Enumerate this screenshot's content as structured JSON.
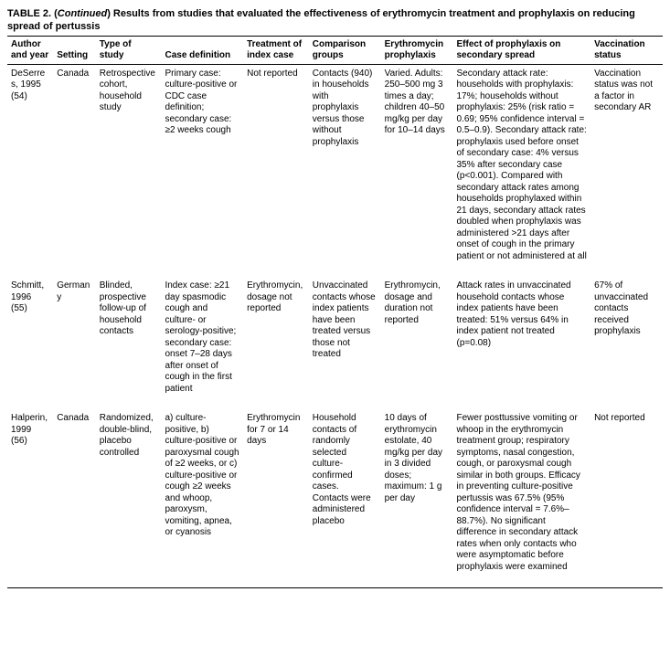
{
  "title_prefix": "TABLE 2. (",
  "title_cont": "Continued",
  "title_suffix": ") Results from studies that evaluated the effectiveness of erythromycin treatment and prophylaxis on reducing spread of pertussis",
  "columns": [
    "Author and year",
    "Setting",
    "Type of study",
    "Case definition",
    "Treatment of index case",
    "Comparison groups",
    "Erythromycin prophylaxis",
    "Effect of prophylaxis on secondary spread",
    "Vaccination status"
  ],
  "rows": [
    {
      "author": "DeSerres, 1995 (54)",
      "setting": "Canada",
      "type": "Retrospective cohort, household study",
      "casedef": "Primary case: culture-positive or CDC case definition; secondary case: ≥2 weeks cough",
      "trx": "Not reported",
      "comp": "Contacts (940) in households with prophylaxis versus those without prophylaxis",
      "eryth": "Varied. Adults: 250–500 mg 3 times a day; children 40–50 mg/kg per day for 10–14 days",
      "effect": "Secondary attack rate: households with prophylaxis: 17%; households without prophylaxis: 25% (risk ratio = 0.69; 95% confidence interval = 0.5–0.9). Secondary attack rate: prophylaxis used before onset of secondary case: 4% versus 35% after secondary case (p<0.001). Compared with secondary attack rates among households prophylaxed within 21 days, secondary attack rates doubled when prophylaxis was administered >21 days after onset of cough in the primary patient or not administered at all",
      "vacc": "Vaccination status was not a factor in secondary AR"
    },
    {
      "author": "Schmitt, 1996 (55)",
      "setting": "Germany",
      "type": "Blinded, prospective follow-up of household contacts",
      "casedef": "Index case: ≥21 day spasmodic cough and culture- or serology-positive; secondary case: onset 7–28 days after onset of cough in the first patient",
      "trx": "Erythromycin, dosage not reported",
      "comp": "Unvaccinated contacts whose index patients have been treated versus those not treated",
      "eryth": "Erythromycin, dosage and duration not reported",
      "effect": "Attack rates in unvaccinated household contacts whose index patients have been treated: 51% versus 64% in index patient not treated (p=0.08)",
      "vacc": "67% of unvaccinated contacts received prophylaxis"
    },
    {
      "author": "Halperin, 1999 (56)",
      "setting": "Canada",
      "type": "Randomized, double-blind, placebo controlled",
      "casedef": "a) culture-positive, b) culture-positive or paroxysmal cough of ≥2 weeks, or c) culture-positive or cough ≥2 weeks and whoop, paroxysm, vomiting, apnea, or cyanosis",
      "trx": "Erythromycin for 7 or 14 days",
      "comp": "Household contacts of randomly selected culture-confirmed cases. Contacts were administered placebo",
      "eryth": "10 days of erythromycin estolate, 40 mg/kg per day in 3 divided doses; maximum: 1 g per day",
      "effect": "Fewer posttussive vomiting or whoop in the erythromycin treatment group; respiratory symptoms, nasal congestion, cough, or paroxysmal cough similar in both groups. Efficacy in preventing culture-positive pertussis was 67.5% (95% confidence interval = 7.6%–88.7%). No significant difference in secondary attack rates when only contacts who were asymptomatic before prophylaxis were examined",
      "vacc": "Not reported"
    }
  ]
}
